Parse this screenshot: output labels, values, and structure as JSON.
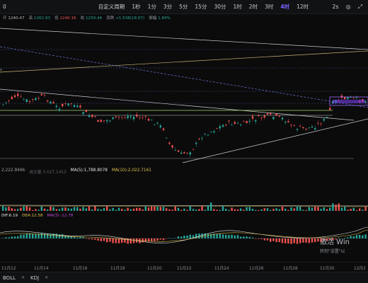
{
  "toolbar": {
    "left_items": [
      "0",
      "",
      "",
      "",
      "",
      "",
      "",
      ""
    ],
    "period_label": "自定义周期",
    "periods": [
      "1秒",
      "1分",
      "3分",
      "5分",
      "15分",
      "30分",
      "1时",
      "2时",
      "3时",
      "4时",
      "12时"
    ],
    "active_period": "4时",
    "right_items": [
      "2s",
      "◎",
      "⤢"
    ]
  },
  "ohlc": {
    "open_key": "开",
    "open_val": "1240.47",
    "high_key": "高",
    "high_val": "1262.93",
    "low_key": "低",
    "low_val": "1240.16",
    "close_key": "收",
    "close_val": "1259.44",
    "change_key": "涨跌",
    "change_val": "+1.538(18.97)",
    "amp_key": "振幅",
    "amp_val": "1.84%"
  },
  "ma": {
    "volume_label": "2,222.8496",
    "muted_label": "成交量 3,027.1453",
    "ma5_label": "MA(5):1,788.8078",
    "ma10_label": "MA(10):2,022.7161"
  },
  "macd": {
    "dif_label": "DIF:6.19",
    "dea_label": "DEA:12.58",
    "macd_label": "MACD:-12.78"
  },
  "xaxis": {
    "labels": [
      "11月12",
      "11月14",
      "11月16",
      "11月18",
      "11月20",
      "11月22",
      "11月24",
      "11月26",
      "11月28",
      "11月30",
      "12月2"
    ]
  },
  "tabs": {
    "items": [
      "BOLL",
      "KDJ"
    ]
  },
  "watermark": {
    "line1": "激活 Win",
    "line2": "转到\"设置\"以"
  },
  "colors": {
    "up": "#26a69a",
    "down": "#ef5350",
    "accent": "#7b61ff"
  }
}
